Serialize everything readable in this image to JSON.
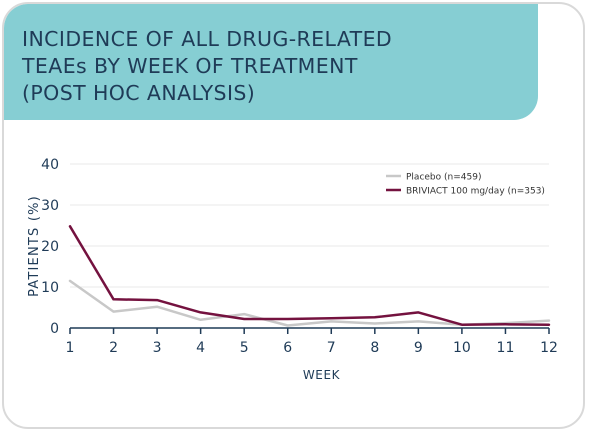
{
  "header": {
    "title_lines": [
      "INCIDENCE OF ALL DRUG-RELATED",
      "TEAEs BY WEEK OF TREATMENT",
      "(POST HOC ANALYSIS)"
    ]
  },
  "colors": {
    "header_bg": "#86ced3",
    "title_text": "#1f3b57",
    "placebo": "#c8c8c8",
    "briviact": "#74123f",
    "axis": "#1f3b57",
    "grid": "#eaeaea"
  },
  "chart_data": {
    "type": "line",
    "title": "INCIDENCE OF ALL DRUG-RELATED TEAEs BY WEEK OF TREATMENT (POST HOC ANALYSIS)",
    "xlabel": "WEEK",
    "ylabel": "PATIENTS (%)",
    "x": [
      1,
      2,
      3,
      4,
      5,
      6,
      7,
      8,
      9,
      10,
      11,
      12
    ],
    "x_tick_labels": [
      "1",
      "2",
      "3",
      "4",
      "5",
      "6",
      "7",
      "8",
      "9",
      "10",
      "11",
      "12"
    ],
    "ylim": [
      0,
      40
    ],
    "y_ticks": [
      0,
      10,
      20,
      30,
      40
    ],
    "y_tick_labels": [
      "0",
      "10",
      "20",
      "30",
      "40"
    ],
    "grid": true,
    "legend_position": "top-right",
    "series": [
      {
        "name": "Placebo (n=459)",
        "color": "#c8c8c8",
        "values": [
          11.5,
          4,
          5.2,
          2,
          3.4,
          0.6,
          1.6,
          1.1,
          1.6,
          0.8,
          1.2,
          1.8
        ]
      },
      {
        "name": "BRIVIACT 100 mg/day (n=353)",
        "color": "#74123f",
        "values": [
          24.8,
          7,
          6.8,
          3.8,
          2.2,
          2.2,
          2.4,
          2.6,
          3.8,
          0.8,
          0.9,
          0.8
        ]
      }
    ]
  }
}
